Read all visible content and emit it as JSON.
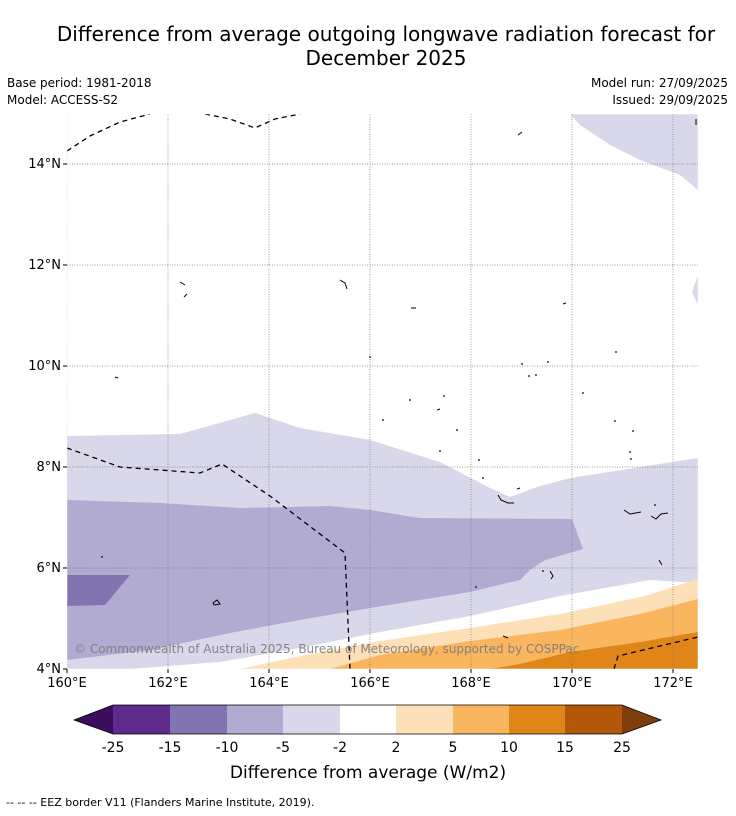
{
  "header": {
    "title_line1": "Difference from average outgoing longwave radiation forecast for",
    "title_line2": "December 2025",
    "base_period": "Base period: 1981-2018",
    "model": "Model: ACCESS-S2",
    "model_run": "Model run: 27/09/2025",
    "issued": "Issued: 29/09/2025"
  },
  "chart_data": {
    "type": "filled-contour-map",
    "title": "Difference from average outgoing longwave radiation forecast for December 2025",
    "region": {
      "lon_range": [
        160,
        172.5
      ],
      "lat_range": [
        4,
        15
      ]
    },
    "x_ticks": [
      "160°E",
      "162°E",
      "164°E",
      "166°E",
      "168°E",
      "170°E",
      "172°E"
    ],
    "y_ticks": [
      "4°N",
      "6°N",
      "8°N",
      "10°N",
      "12°N",
      "14°N"
    ],
    "grid": true,
    "colorbar": {
      "label": "Difference from average (W/m2)",
      "ticks": [
        "-25",
        "-15",
        "-10",
        "-5",
        "-2",
        "2",
        "5",
        "10",
        "15",
        "25"
      ],
      "colors": [
        "#3b0f5e",
        "#5e2a8c",
        "#8274b0",
        "#b1abd2",
        "#d8d8ea",
        "#ffffff",
        "#fde0b8",
        "#f9b65f",
        "#e08518",
        "#b35808",
        "#7e3d0a"
      ]
    },
    "copyright": "© Commonwealth of Australia 2025, Bureau of Meteorology, supported by COSPPac",
    "legend_note": "--  --  -- EEZ border V11 (Flanders Marine Institute, 2019)."
  }
}
